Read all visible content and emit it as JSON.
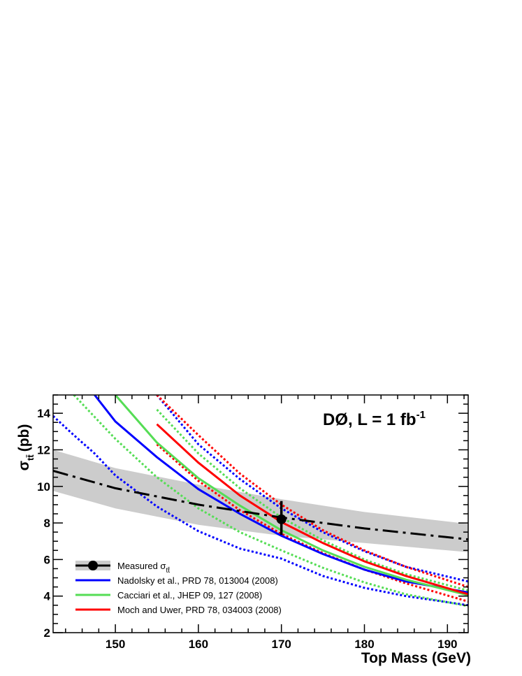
{
  "chart_data": {
    "type": "line",
    "title": "DØ, L = 1 fb",
    "title_superscript": "-1",
    "xlabel": "Top Mass (GeV)",
    "ylabel": "σ",
    "ylabel_subscript": "tt̄",
    "ylabel_unit": "(pb)",
    "xlim": [
      142.5,
      192.5
    ],
    "ylim": [
      2,
      15
    ],
    "xticks": [
      150,
      160,
      170,
      180,
      190
    ],
    "yticks": [
      2,
      4,
      6,
      8,
      10,
      12,
      14
    ],
    "grid": false,
    "legend_position": "bottom-left",
    "measured_point": {
      "x": 170,
      "y": 8.2,
      "yerr_low": 7.35,
      "yerr_high": 9.2
    },
    "measured_curve": {
      "x": [
        142.5,
        150,
        160,
        170,
        180,
        192.5
      ],
      "central": [
        10.85,
        9.9,
        9.0,
        8.3,
        7.7,
        7.1
      ],
      "band_low": [
        9.75,
        8.8,
        7.9,
        7.3,
        6.9,
        6.4
      ],
      "band_high": [
        12.0,
        11.0,
        10.1,
        9.3,
        8.6,
        7.95
      ],
      "color": "#cccccc"
    },
    "series": [
      {
        "name": "Nadolsky et al., PRD 78, 013004 (2008)",
        "color": "#0000ff",
        "x": [
          142.5,
          145,
          147.5,
          150,
          155,
          160,
          165,
          170,
          175,
          180,
          185,
          192.5
        ],
        "central": [
          null,
          null,
          15.0,
          13.55,
          11.6,
          9.85,
          8.5,
          7.3,
          6.3,
          5.45,
          4.8,
          4.2
        ],
        "upper": [
          null,
          null,
          null,
          null,
          15.0,
          12.3,
          10.4,
          8.8,
          7.5,
          6.45,
          5.6,
          4.8
        ],
        "lower": [
          13.85,
          12.8,
          11.8,
          10.6,
          8.9,
          7.55,
          6.6,
          6.05,
          5.1,
          4.45,
          4.0,
          3.5
        ]
      },
      {
        "name": "Cacciari et al., JHEP 09, 127 (2008)",
        "color": "#55dd55",
        "x": [
          142.5,
          145,
          147.5,
          150,
          155,
          160,
          165,
          170,
          175,
          180,
          185,
          192.5
        ],
        "central": [
          null,
          null,
          null,
          15.0,
          12.4,
          10.45,
          8.95,
          7.6,
          6.5,
          5.6,
          4.9,
          4.05
        ],
        "upper": [
          null,
          null,
          null,
          null,
          14.2,
          11.8,
          9.9,
          8.3,
          7.05,
          6.0,
          5.2,
          4.3
        ],
        "lower": [
          null,
          15.0,
          13.8,
          12.6,
          10.5,
          8.8,
          7.5,
          6.5,
          5.55,
          4.75,
          4.1,
          3.45
        ]
      },
      {
        "name": "Moch and Uwer, PRD 78, 034003 (2008)",
        "color": "#ff0000",
        "x": [
          142.5,
          145,
          147.5,
          150,
          155,
          160,
          165,
          170,
          175,
          180,
          185,
          192.5
        ],
        "central": [
          null,
          null,
          null,
          null,
          13.4,
          11.3,
          9.5,
          8.05,
          6.9,
          5.9,
          5.1,
          4.1
        ],
        "upper": [
          null,
          null,
          null,
          null,
          15.0,
          12.8,
          10.7,
          9.0,
          7.6,
          6.5,
          5.6,
          4.5
        ],
        "lower": [
          null,
          null,
          null,
          null,
          12.3,
          10.3,
          8.7,
          7.4,
          6.35,
          5.45,
          4.7,
          3.7
        ]
      }
    ],
    "legend": [
      {
        "label": "Measured σ",
        "sub": "tt̄",
        "kind": "measured"
      },
      {
        "label": "Nadolsky et al., PRD 78, 013004 (2008)",
        "kind": "line",
        "color": "#0000ff"
      },
      {
        "label": "Cacciari et al., JHEP 09, 127 (2008)",
        "kind": "line",
        "color": "#55dd55"
      },
      {
        "label": "Moch and Uwer, PRD 78, 034003 (2008)",
        "kind": "line",
        "color": "#ff0000"
      }
    ]
  }
}
